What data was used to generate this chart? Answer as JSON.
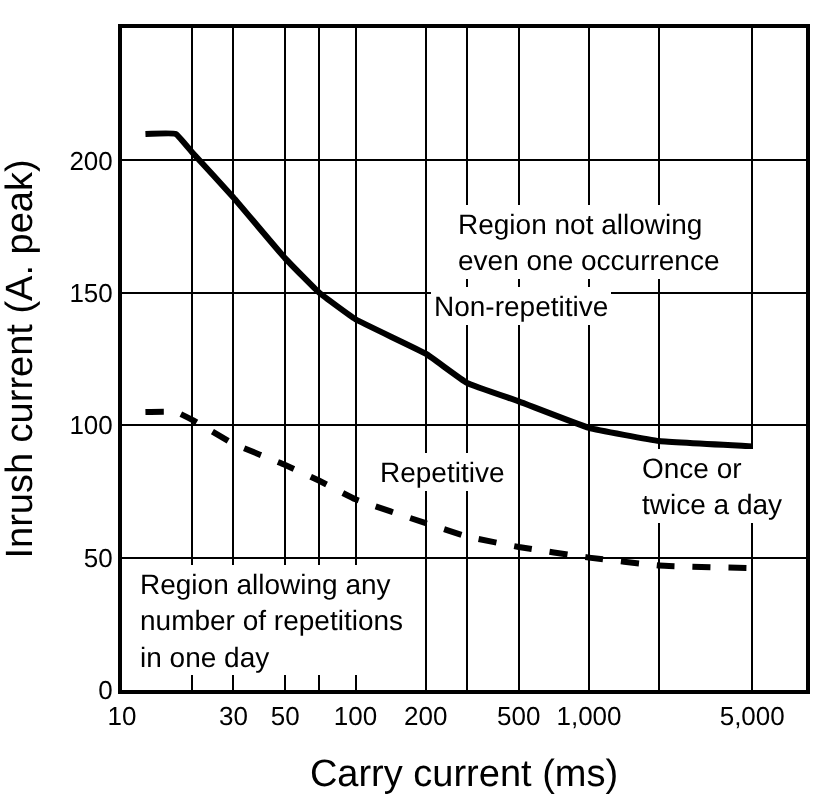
{
  "chart_data": {
    "type": "line",
    "xlabel": "Carry current (ms)",
    "ylabel": "Inrush current (A. peak)",
    "series": [
      {
        "color": "#000000",
        "line_style": "solid",
        "x": [
          12.6,
          17,
          20,
          30,
          50,
          70,
          100,
          200,
          300,
          500,
          1000,
          2000,
          5000
        ],
        "values": [
          210,
          210,
          203,
          186,
          163,
          150,
          140,
          127,
          116,
          109,
          99,
          94,
          92
        ]
      },
      {
        "color": "#000000",
        "line_style": "dashed",
        "x": [
          12.6,
          17,
          20,
          30,
          50,
          70,
          100,
          200,
          300,
          500,
          1000,
          2000,
          5000
        ],
        "values": [
          105,
          105,
          102,
          93,
          85,
          79,
          72,
          63,
          58,
          54,
          50,
          47,
          46
        ]
      }
    ],
    "log": "x",
    "xlim": [
      10,
      8500
    ],
    "ylim": [
      0,
      250
    ],
    "xticks": [
      10,
      {
        "value": 20,
        "label": null
      },
      30,
      50,
      {
        "value": 70,
        "label": null
      },
      100,
      200,
      {
        "value": 300,
        "label": null
      },
      500,
      {
        "value": 1000,
        "label": "1,000"
      },
      {
        "value": 2000,
        "label": null
      },
      {
        "value": 5000,
        "label": "5,000"
      }
    ],
    "yticks": [
      0,
      50,
      100,
      150,
      200
    ],
    "grid": true,
    "marker": "none",
    "annotations": [
      "Region not allowing\neven one occurrence",
      "Non-repetitive",
      "Repetitive",
      "Once or\ntwice a day",
      "Region allowing any\nnumber of repetitions\nin one day"
    ]
  }
}
